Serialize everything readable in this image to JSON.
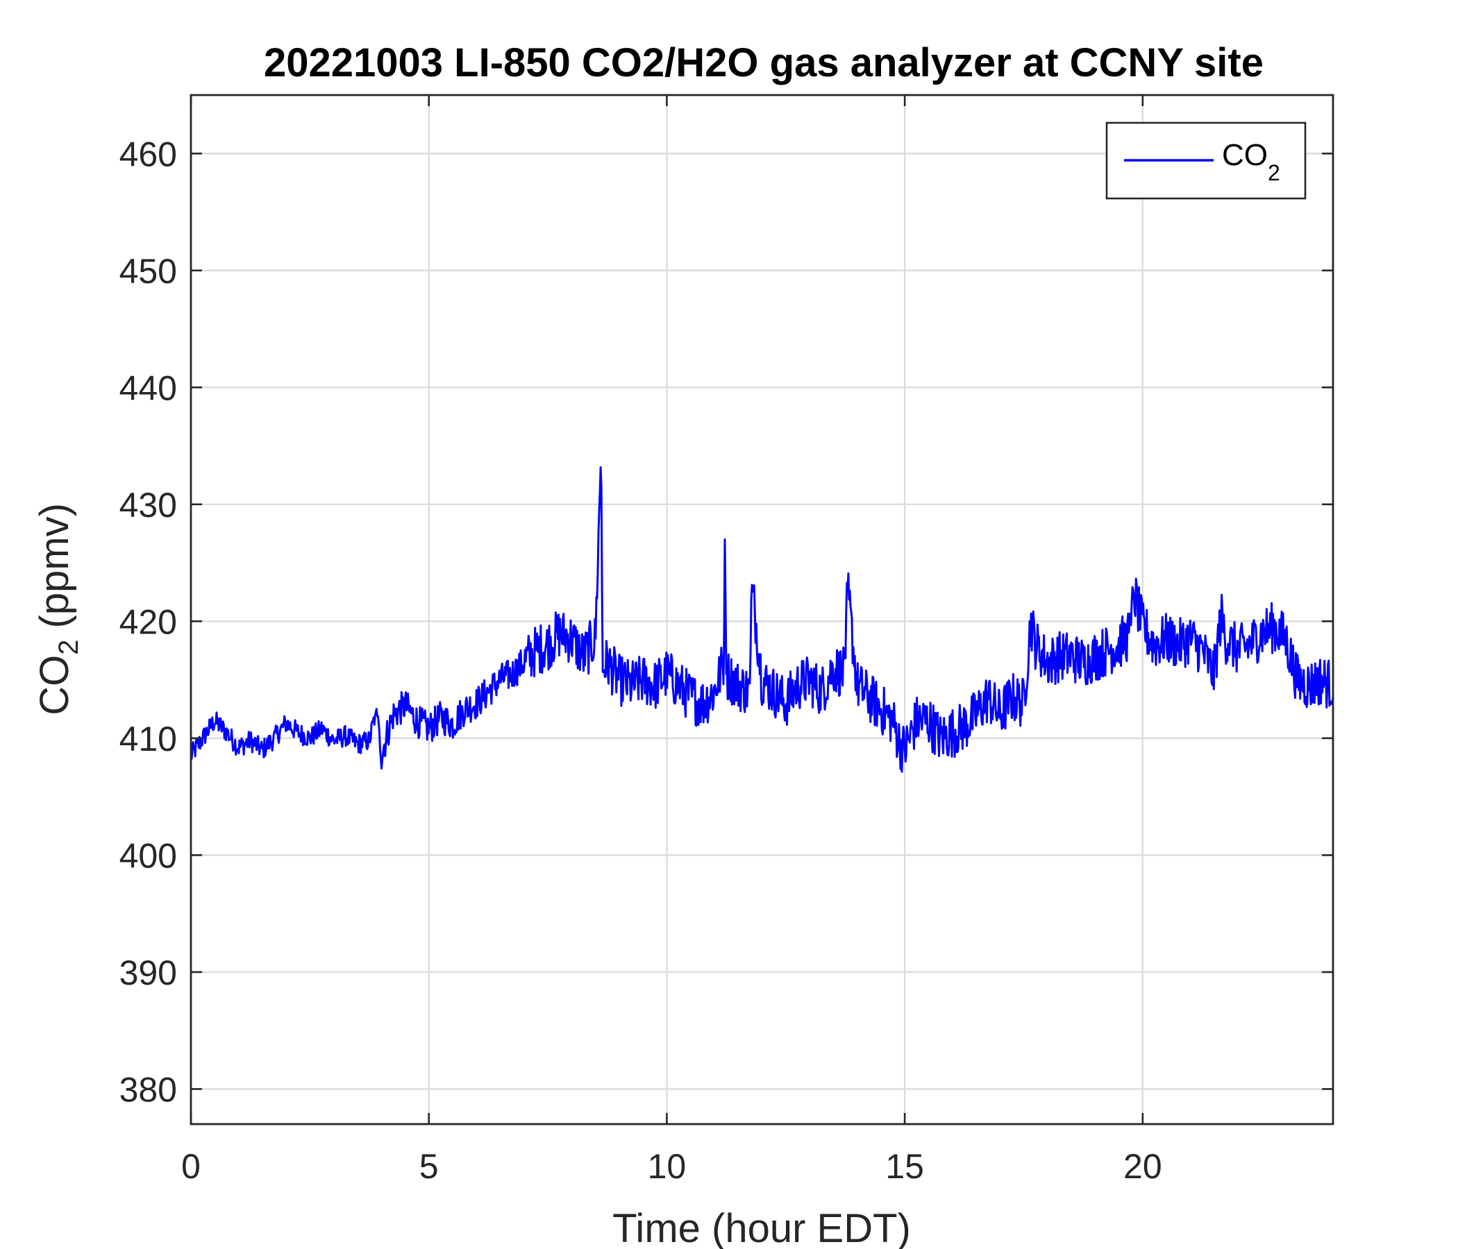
{
  "chart_data": {
    "type": "line",
    "title": "20221003 LI-850 CO2/H2O gas analyzer at CCNY site",
    "xlabel": "Time (hour EDT)",
    "ylabel_main": "CO",
    "ylabel_sub": "2",
    "ylabel_unit": " (ppmv)",
    "xlim": [
      0,
      24
    ],
    "ylim": [
      377,
      465
    ],
    "xticks": [
      0,
      5,
      10,
      15,
      20
    ],
    "yticks": [
      380,
      390,
      400,
      410,
      420,
      430,
      440,
      450,
      460
    ],
    "grid": true,
    "legend_position": "top-right",
    "legend": {
      "main": "CO",
      "sub": "2"
    },
    "series": [
      {
        "color": "#0000ff",
        "x": [
          0,
          0.25,
          0.5,
          0.75,
          1,
          1.25,
          1.5,
          1.75,
          2,
          2.25,
          2.5,
          2.75,
          3,
          3.25,
          3.5,
          3.75,
          3.9,
          4.0,
          4.1,
          4.25,
          4.5,
          4.75,
          5,
          5.25,
          5.5,
          5.75,
          6,
          6.25,
          6.5,
          6.75,
          7,
          7.25,
          7.5,
          7.75,
          8,
          8.25,
          8.5,
          8.62,
          8.65,
          8.75,
          9,
          9.25,
          9.5,
          9.75,
          10,
          10.25,
          10.5,
          10.75,
          11,
          11.2,
          11.22,
          11.25,
          11.5,
          11.75,
          11.78,
          12,
          12.25,
          12.5,
          12.75,
          13,
          13.25,
          13.5,
          13.75,
          13.78,
          14,
          14.25,
          14.5,
          14.75,
          14.9,
          15,
          15.25,
          15.5,
          15.75,
          16,
          16.25,
          16.5,
          16.75,
          17,
          17.25,
          17.5,
          17.65,
          17.75,
          18,
          18.25,
          18.5,
          18.75,
          19,
          19.25,
          19.5,
          19.75,
          19.78,
          20,
          20.25,
          20.5,
          20.75,
          21,
          21.25,
          21.5,
          21.65,
          21.75,
          22,
          22.25,
          22.5,
          22.75,
          23,
          23.25,
          23.5,
          23.75,
          24
        ],
        "y": [
          408.5,
          410.0,
          411.5,
          410.5,
          409.2,
          409.8,
          409.0,
          410.0,
          411.3,
          410.5,
          410.0,
          410.8,
          409.8,
          410.2,
          409.5,
          409.8,
          412.5,
          408.5,
          410.0,
          412.0,
          412.8,
          411.5,
          410.8,
          411.8,
          411.2,
          412.5,
          413.0,
          414.0,
          415.0,
          415.5,
          416.5,
          417.5,
          418.0,
          419.0,
          418.5,
          417.0,
          418.5,
          434.5,
          416.0,
          416.5,
          415.0,
          414.5,
          415.0,
          414.5,
          415.5,
          414.5,
          413.5,
          413.0,
          414.0,
          416.5,
          427.0,
          415.5,
          414.5,
          414.0,
          423.5,
          415.0,
          414.0,
          413.0,
          414.5,
          415.0,
          414.0,
          416.0,
          415.5,
          423.5,
          414.5,
          413.5,
          412.5,
          411.5,
          409.5,
          409.0,
          411.5,
          411.5,
          410.0,
          410.5,
          411.0,
          412.0,
          413.5,
          412.0,
          413.5,
          413.0,
          420.0,
          418.0,
          416.5,
          417.0,
          417.0,
          416.5,
          417.0,
          417.5,
          418.0,
          419.0,
          423.0,
          419.5,
          418.0,
          418.5,
          418.0,
          418.5,
          417.5,
          415.5,
          420.5,
          418.5,
          417.5,
          418.0,
          419.0,
          419.5,
          418.5,
          415.0,
          414.5,
          415.0,
          414.5
        ]
      }
    ]
  }
}
